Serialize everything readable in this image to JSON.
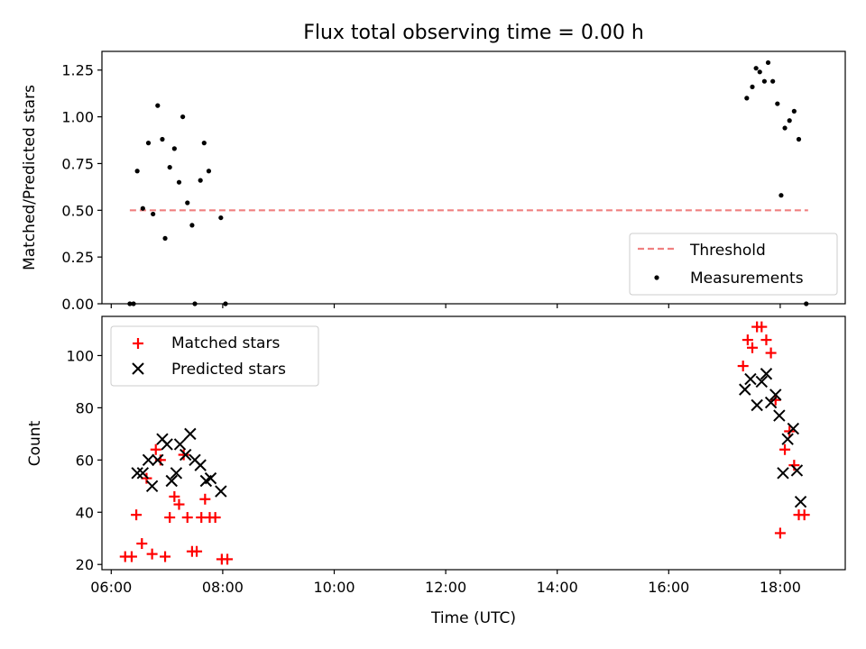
{
  "chart_data": [
    {
      "type": "scatter",
      "title": "Flux total observing time = 0.00 h",
      "xlabel": "",
      "ylabel": "Matched/Predicted stars",
      "ylim": [
        0,
        1.35
      ],
      "yticks": [
        "0.00",
        "0.25",
        "0.50",
        "0.75",
        "1.00",
        "1.25"
      ],
      "ytick_values": [
        0,
        0.25,
        0.5,
        0.75,
        1.0,
        1.25
      ],
      "grid": false,
      "legend_position": "lower-right",
      "threshold": {
        "name": "Threshold",
        "value": 0.5,
        "x_start": "06:20",
        "x_end": "18:30",
        "color": "#f08080",
        "style": "dashed"
      },
      "series": [
        {
          "name": "Measurements",
          "color": "#000000",
          "marker": "dot",
          "points": [
            [
              "06:20",
              0.0
            ],
            [
              "06:24",
              0.0
            ],
            [
              "06:28",
              0.71
            ],
            [
              "06:34",
              0.51
            ],
            [
              "06:40",
              0.86
            ],
            [
              "06:45",
              0.48
            ],
            [
              "06:50",
              1.06
            ],
            [
              "06:55",
              0.88
            ],
            [
              "06:58",
              0.35
            ],
            [
              "07:03",
              0.73
            ],
            [
              "07:08",
              0.83
            ],
            [
              "07:13",
              0.65
            ],
            [
              "07:17",
              1.0
            ],
            [
              "07:22",
              0.54
            ],
            [
              "07:27",
              0.42
            ],
            [
              "07:30",
              0.0
            ],
            [
              "07:36",
              0.66
            ],
            [
              "07:40",
              0.86
            ],
            [
              "07:45",
              0.71
            ],
            [
              "07:58",
              0.46
            ],
            [
              "08:03",
              0.0
            ],
            [
              "17:24",
              1.1
            ],
            [
              "17:30",
              1.16
            ],
            [
              "17:34",
              1.26
            ],
            [
              "17:38",
              1.24
            ],
            [
              "17:43",
              1.19
            ],
            [
              "17:47",
              1.29
            ],
            [
              "17:52",
              1.19
            ],
            [
              "17:57",
              1.07
            ],
            [
              "18:01",
              0.58
            ],
            [
              "18:05",
              0.94
            ],
            [
              "18:10",
              0.98
            ],
            [
              "18:15",
              1.03
            ],
            [
              "18:20",
              0.88
            ],
            [
              "18:28",
              0.0
            ]
          ]
        }
      ]
    },
    {
      "type": "scatter",
      "title": "",
      "xlabel": "Time (UTC)",
      "ylabel": "Count",
      "xlim": [
        "05:50",
        "19:10"
      ],
      "xticks": [
        "06:00",
        "08:00",
        "10:00",
        "12:00",
        "14:00",
        "16:00",
        "18:00"
      ],
      "ylim": [
        18,
        115
      ],
      "yticks": [
        "20",
        "40",
        "60",
        "80",
        "100"
      ],
      "ytick_values": [
        20,
        40,
        60,
        80,
        100
      ],
      "grid": false,
      "legend_position": "upper-left",
      "series": [
        {
          "name": "Matched stars",
          "color": "#ff0000",
          "marker": "plus",
          "points": [
            [
              "06:15",
              23
            ],
            [
              "06:22",
              23
            ],
            [
              "06:27",
              39
            ],
            [
              "06:33",
              28
            ],
            [
              "06:38",
              53
            ],
            [
              "06:44",
              24
            ],
            [
              "06:48",
              64
            ],
            [
              "06:53",
              60
            ],
            [
              "06:58",
              23
            ],
            [
              "07:03",
              38
            ],
            [
              "07:08",
              46
            ],
            [
              "07:13",
              43
            ],
            [
              "07:18",
              62
            ],
            [
              "07:22",
              38
            ],
            [
              "07:27",
              25
            ],
            [
              "07:32",
              25
            ],
            [
              "07:37",
              38
            ],
            [
              "07:41",
              45
            ],
            [
              "07:46",
              38
            ],
            [
              "07:52",
              38
            ],
            [
              "07:59",
              22
            ],
            [
              "08:05",
              22
            ],
            [
              "17:20",
              96
            ],
            [
              "17:25",
              106
            ],
            [
              "17:30",
              103
            ],
            [
              "17:35",
              111
            ],
            [
              "17:40",
              111
            ],
            [
              "17:45",
              106
            ],
            [
              "17:50",
              101
            ],
            [
              "17:55",
              83
            ],
            [
              "18:00",
              32
            ],
            [
              "18:05",
              64
            ],
            [
              "18:10",
              71
            ],
            [
              "18:15",
              58
            ],
            [
              "18:20",
              39
            ],
            [
              "18:26",
              39
            ]
          ]
        },
        {
          "name": "Predicted stars",
          "color": "#000000",
          "marker": "x",
          "points": [
            [
              "06:28",
              55
            ],
            [
              "06:34",
              55
            ],
            [
              "06:40",
              60
            ],
            [
              "06:44",
              50
            ],
            [
              "06:50",
              60
            ],
            [
              "06:55",
              68
            ],
            [
              "07:00",
              66
            ],
            [
              "07:05",
              52
            ],
            [
              "07:10",
              55
            ],
            [
              "07:14",
              66
            ],
            [
              "07:20",
              62
            ],
            [
              "07:25",
              70
            ],
            [
              "07:30",
              60
            ],
            [
              "07:36",
              58
            ],
            [
              "07:42",
              52
            ],
            [
              "07:47",
              53
            ],
            [
              "07:58",
              48
            ],
            [
              "17:22",
              87
            ],
            [
              "17:28",
              91
            ],
            [
              "17:35",
              81
            ],
            [
              "17:40",
              90
            ],
            [
              "17:45",
              93
            ],
            [
              "17:50",
              82
            ],
            [
              "17:55",
              85
            ],
            [
              "17:59",
              77
            ],
            [
              "18:03",
              55
            ],
            [
              "18:08",
              68
            ],
            [
              "18:14",
              72
            ],
            [
              "18:18",
              56
            ],
            [
              "18:22",
              44
            ]
          ]
        }
      ]
    }
  ]
}
